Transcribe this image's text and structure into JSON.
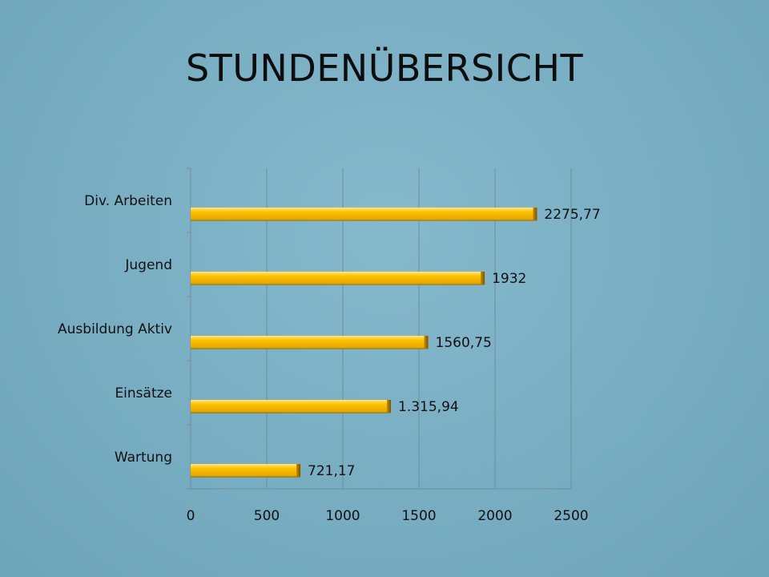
{
  "slide": {
    "title": "STUNDENÜBERSICHT"
  },
  "colors": {
    "bar_main": "#ffc000",
    "bar_light": "#ffe26a",
    "bar_dark": "#9a6c00",
    "grid": "#6f8f9c",
    "background": "#7fb3c6"
  },
  "chart_data": {
    "type": "bar",
    "orientation": "horizontal",
    "title": "",
    "xlabel": "",
    "ylabel": "",
    "categories": [
      "Div. Arbeiten",
      "Jugend",
      "Ausbildung Aktiv",
      "Einsätze",
      "Wartung"
    ],
    "values": [
      2275.77,
      1932,
      1560.75,
      1315.94,
      721.17
    ],
    "data_labels": [
      "2275,77",
      "1932",
      "1560,75",
      "1.315,94",
      "721,17"
    ],
    "xlim": [
      0,
      2500
    ],
    "x_ticks": [
      0,
      500,
      1000,
      1500,
      2000,
      2500
    ],
    "x_tick_labels": [
      "0",
      "500",
      "1000",
      "1500",
      "2000",
      "2500"
    ],
    "grid": "vertical",
    "legend": "none"
  }
}
